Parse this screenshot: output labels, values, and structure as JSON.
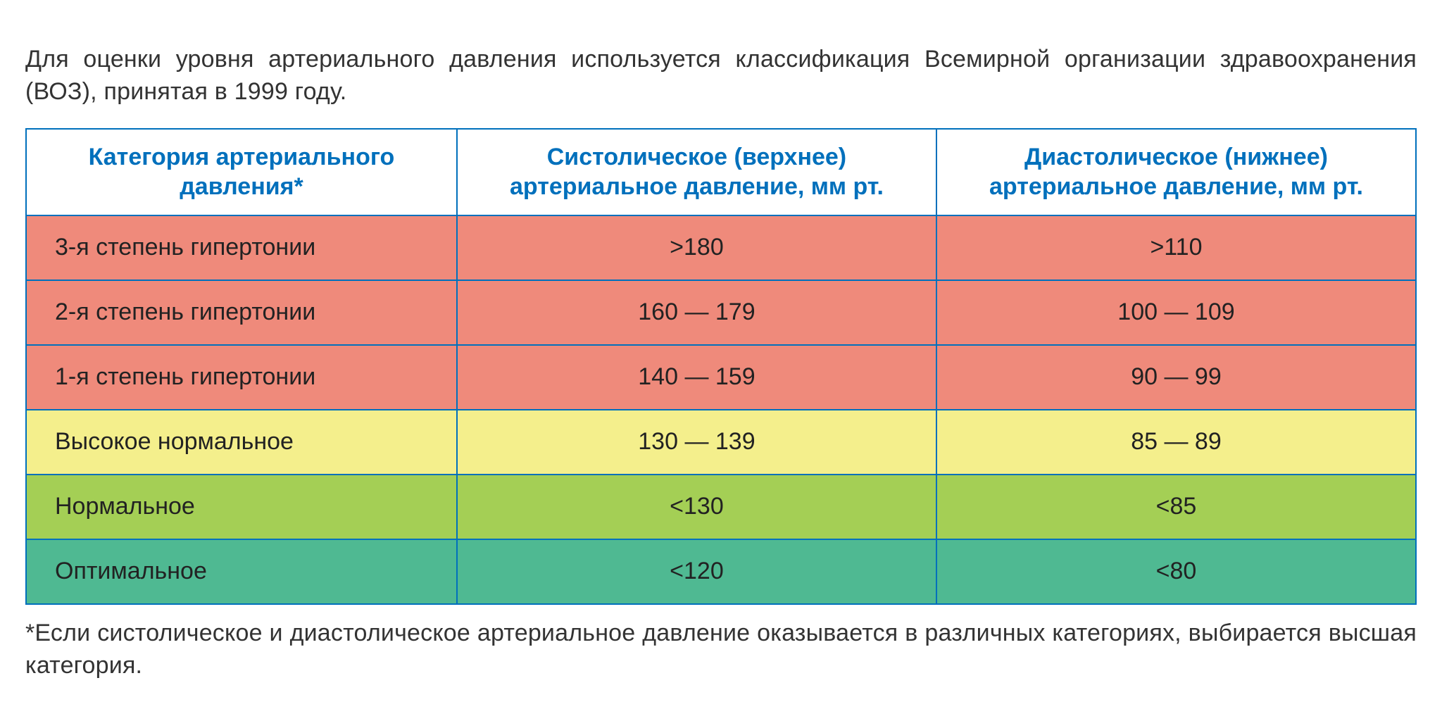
{
  "intro_text": "Для оценки уровня артериального давления используется классификация Всемирной организации здравоохранения (ВОЗ), принятая в 1999 году.",
  "footnote_text": "*Если систолическое и диастолическое артериальное давление оказывается в различных категориях, выбирается высшая категория.",
  "table": {
    "type": "table",
    "border_color": "#0070bc",
    "header_text_color": "#0070bc",
    "header_bg": "#ffffff",
    "body_text_color": "#222222",
    "header_fontsize": 34,
    "body_fontsize": 34,
    "column_widths_pct": [
      31,
      34.5,
      34.5
    ],
    "columns": [
      "Категория артериального давления*",
      "Систолическое (верхнее) артериальное давление, мм рт.",
      "Диастолическое (нижнее) артериальное давление, мм рт."
    ],
    "rows": [
      {
        "bg": "#ef8a7b",
        "cells": [
          "3-я степень гипертонии",
          ">180",
          ">110"
        ]
      },
      {
        "bg": "#ef8a7b",
        "cells": [
          "2-я степень гипертонии",
          "160 — 179",
          "100 — 109"
        ]
      },
      {
        "bg": "#ef8a7b",
        "cells": [
          "1-я степень гипертонии",
          "140 — 159",
          "90 — 99"
        ]
      },
      {
        "bg": "#f4ef8c",
        "cells": [
          "Высокое нормальное",
          "130 — 139",
          "85 — 89"
        ]
      },
      {
        "bg": "#a4cf55",
        "cells": [
          "Нормальное",
          "<130",
          "<85"
        ]
      },
      {
        "bg": "#4fb992",
        "cells": [
          "Оптимальное",
          "<120",
          "<80"
        ]
      }
    ]
  }
}
